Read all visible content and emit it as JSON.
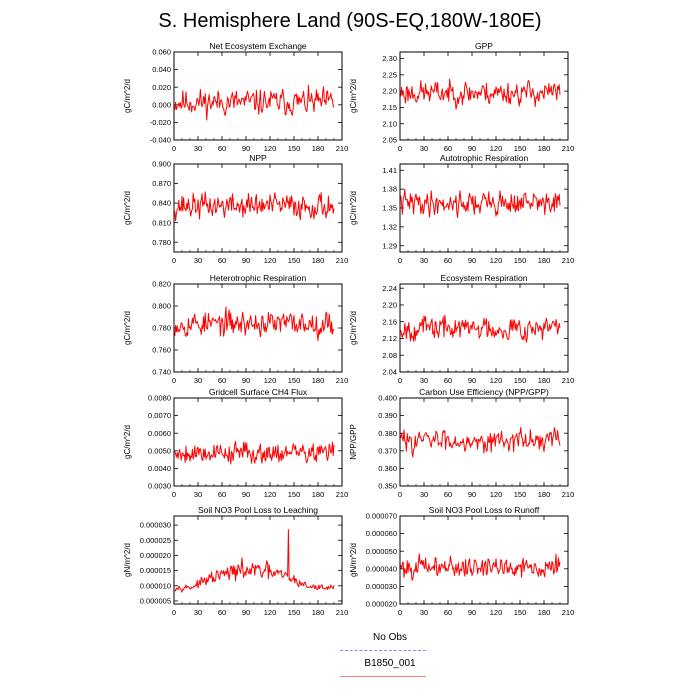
{
  "title": "S. Hemisphere Land (90S-EQ,180W-180E)",
  "legend": [
    {
      "label": "No Obs",
      "color": "#8888ff",
      "style": "dashed"
    },
    {
      "label": "B1850_001",
      "color": "#ff8080",
      "style": "solid"
    }
  ],
  "chart_data": [
    {
      "type": "line",
      "title": "Net Ecosystem Exchange",
      "xlabel": "",
      "ylabel": "gC/m^2/d",
      "xlim": [
        0,
        210
      ],
      "ylim": [
        -0.04,
        0.06
      ],
      "xticks": [
        "0",
        "30",
        "60",
        "90",
        "120",
        "150",
        "180",
        "210"
      ],
      "yticks": [
        "-0.040",
        "-0.020",
        "0.000",
        "0.020",
        "0.040",
        "0.060"
      ],
      "series": [
        {
          "color": "#ff0000",
          "n": 200,
          "mean": 0.003,
          "amp": 0.018,
          "trend": 0,
          "seed": 11
        }
      ]
    },
    {
      "type": "line",
      "title": "GPP",
      "xlabel": "",
      "ylabel": "gC/m^2/d",
      "xlim": [
        0,
        210
      ],
      "ylim": [
        2.05,
        2.32
      ],
      "xticks": [
        "0",
        "30",
        "60",
        "90",
        "120",
        "150",
        "180",
        "210"
      ],
      "yticks": [
        "2.05",
        "2.10",
        "2.15",
        "2.20",
        "2.25",
        "2.30"
      ],
      "series": [
        {
          "color": "#ff0000",
          "n": 200,
          "mean": 2.195,
          "amp": 0.045,
          "trend": 0,
          "seed": 23
        }
      ]
    },
    {
      "type": "line",
      "title": "NPP",
      "xlabel": "",
      "ylabel": "gC/m^2/d",
      "xlim": [
        0,
        210
      ],
      "ylim": [
        0.765,
        0.9
      ],
      "xticks": [
        "0",
        "30",
        "60",
        "90",
        "120",
        "150",
        "180",
        "210"
      ],
      "yticks": [
        "0.780",
        "0.810",
        "0.840",
        "0.870",
        "0.900"
      ],
      "series": [
        {
          "color": "#ff0000",
          "n": 200,
          "mean": 0.836,
          "amp": 0.024,
          "trend": 0,
          "seed": 37
        }
      ]
    },
    {
      "type": "line",
      "title": "Autotrophic Respiration",
      "xlabel": "",
      "ylabel": "gC/m^2/d",
      "xlim": [
        0,
        210
      ],
      "ylim": [
        1.28,
        1.42
      ],
      "xticks": [
        "0",
        "30",
        "60",
        "90",
        "120",
        "150",
        "180",
        "210"
      ],
      "yticks": [
        "1.29",
        "1.32",
        "1.35",
        "1.38",
        "1.41"
      ],
      "series": [
        {
          "color": "#ff0000",
          "n": 200,
          "mean": 1.358,
          "amp": 0.024,
          "trend": 0,
          "seed": 41
        }
      ]
    },
    {
      "type": "line",
      "title": "Heterotrophic Respiration",
      "xlabel": "",
      "ylabel": "gC/m^2/d",
      "xlim": [
        0,
        210
      ],
      "ylim": [
        0.74,
        0.82
      ],
      "xticks": [
        "0",
        "30",
        "60",
        "90",
        "120",
        "150",
        "180",
        "210"
      ],
      "yticks": [
        "0.740",
        "0.760",
        "0.780",
        "0.800",
        "0.820"
      ],
      "series": [
        {
          "color": "#ff0000",
          "n": 200,
          "mean": 0.784,
          "amp": 0.014,
          "trend": 0,
          "seed": 53
        }
      ]
    },
    {
      "type": "line",
      "title": "Ecosystem Respiration",
      "xlabel": "",
      "ylabel": "gC/m^2/d",
      "xlim": [
        0,
        210
      ],
      "ylim": [
        2.04,
        2.25
      ],
      "xticks": [
        "0",
        "30",
        "60",
        "90",
        "120",
        "150",
        "180",
        "210"
      ],
      "yticks": [
        "2.04",
        "2.08",
        "2.12",
        "2.16",
        "2.20",
        "2.24"
      ],
      "series": [
        {
          "color": "#ff0000",
          "n": 200,
          "mean": 2.145,
          "amp": 0.035,
          "trend": 0,
          "seed": 67
        }
      ]
    },
    {
      "type": "line",
      "title": "Gridcell Surface CH4 Flux",
      "xlabel": "",
      "ylabel": "gC/m^2/d",
      "xlim": [
        0,
        210
      ],
      "ylim": [
        0.003,
        0.008
      ],
      "xticks": [
        "0",
        "30",
        "60",
        "90",
        "120",
        "150",
        "180",
        "210"
      ],
      "yticks": [
        "0.0030",
        "0.0040",
        "0.0050",
        "0.0060",
        "0.0070",
        "0.0080"
      ],
      "series": [
        {
          "color": "#ff0000",
          "n": 200,
          "mean": 0.0049,
          "amp": 0.00075,
          "trend": 0,
          "seed": 79
        }
      ]
    },
    {
      "type": "line",
      "title": "Carbon Use Efficiency (NPP/GPP)",
      "xlabel": "",
      "ylabel": "NPP/GPP",
      "xlim": [
        0,
        210
      ],
      "ylim": [
        0.35,
        0.4
      ],
      "xticks": [
        "0",
        "30",
        "60",
        "90",
        "120",
        "150",
        "180",
        "210"
      ],
      "yticks": [
        "0.350",
        "0.360",
        "0.370",
        "0.380",
        "0.390",
        "0.400"
      ],
      "series": [
        {
          "color": "#ff0000",
          "n": 200,
          "mean": 0.376,
          "amp": 0.0075,
          "trend": 0,
          "seed": 83
        }
      ]
    },
    {
      "type": "line",
      "title": "Soil NO3 Pool Loss to Leaching",
      "xlabel": "",
      "ylabel": "gN/m^2/d",
      "xlim": [
        0,
        210
      ],
      "ylim": [
        4e-06,
        3.3e-05
      ],
      "xticks": [
        "0",
        "30",
        "60",
        "90",
        "120",
        "150",
        "180",
        "210"
      ],
      "yticks": [
        "0.000005",
        "0.000010",
        "0.000015",
        "0.000020",
        "0.000025",
        "0.000030"
      ],
      "series": [
        {
          "color": "#ff0000",
          "n": 200,
          "mean": 9.5e-06,
          "amp": 1.2e-06,
          "trend": 0,
          "seed": 97
        }
      ]
    },
    {
      "type": "line",
      "title": "Soil NO3 Pool Loss to Runoff",
      "xlabel": "",
      "ylabel": "gN/m^2/d",
      "xlim": [
        0,
        210
      ],
      "ylim": [
        2e-05,
        7e-05
      ],
      "xticks": [
        "0",
        "30",
        "60",
        "90",
        "120",
        "150",
        "180",
        "210"
      ],
      "yticks": [
        "0.000020",
        "0.000030",
        "0.000040",
        "0.000050",
        "0.000060",
        "0.000070"
      ],
      "series": [
        {
          "color": "#ff0000",
          "n": 200,
          "mean": 4.1e-05,
          "amp": 7.5e-06,
          "trend": 0,
          "seed": 101
        }
      ]
    }
  ]
}
